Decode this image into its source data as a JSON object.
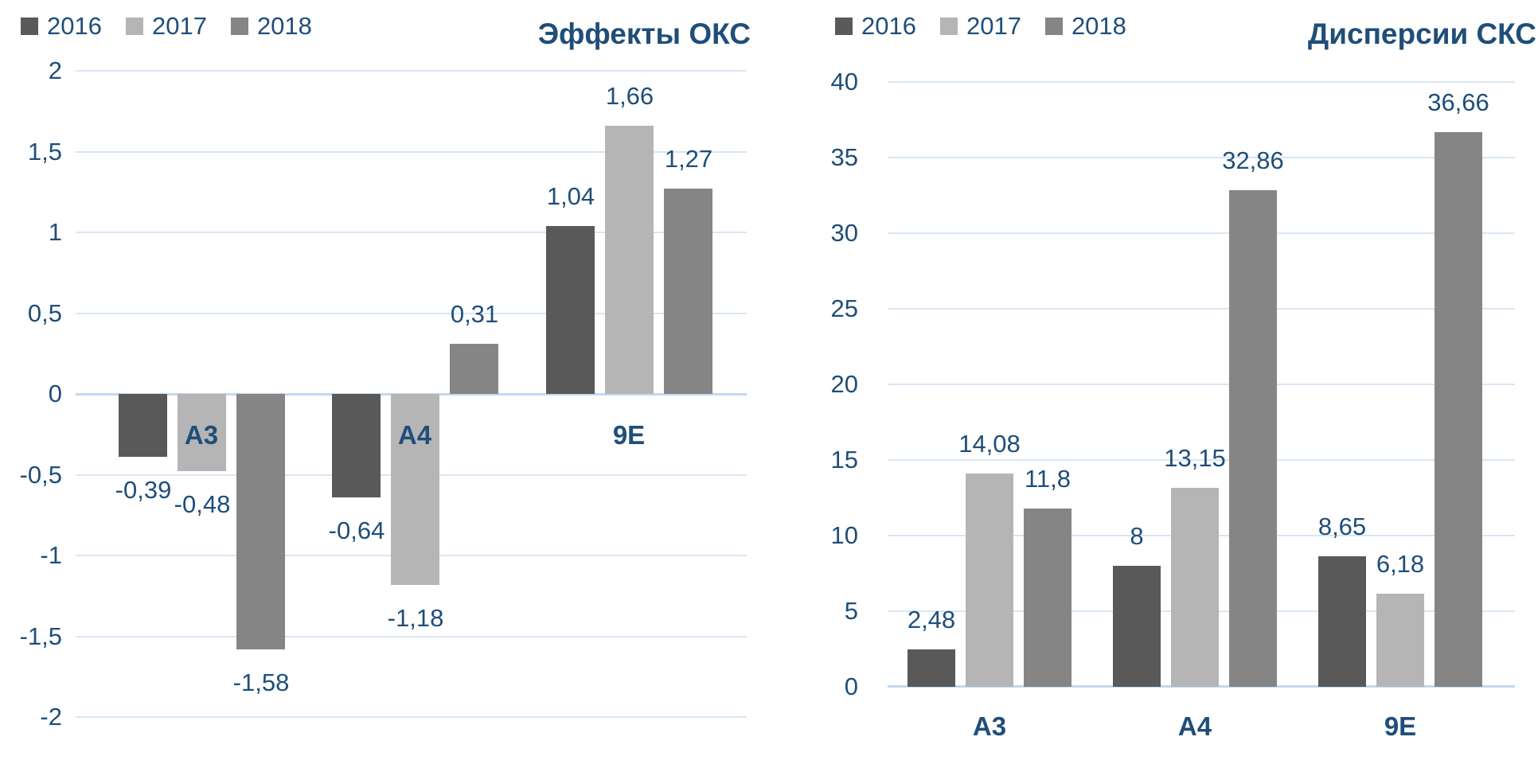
{
  "palette": {
    "text_color": "#1F4E79",
    "gridline_color": "#D9E6F5",
    "axis_baseline_color": "#C3D9F0",
    "background": "#FFFFFF"
  },
  "chart_data": [
    {
      "type": "bar",
      "title": "Эффекты ОКС",
      "legend_position": "top-left",
      "grid": true,
      "categories": [
        "A3",
        "A4",
        "9E"
      ],
      "series": [
        {
          "name": "2016",
          "color": "#595959",
          "values": [
            -0.39,
            -0.64,
            1.04
          ],
          "labels": [
            "-0,39",
            "-0,64",
            "1,04"
          ]
        },
        {
          "name": "2017",
          "color": "#B5B5B5",
          "values": [
            -0.48,
            -1.18,
            1.66
          ],
          "labels": [
            "-0,48",
            "-1,18",
            "1,66"
          ]
        },
        {
          "name": "2018",
          "color": "#858585",
          "values": [
            -1.58,
            0.31,
            1.27
          ],
          "labels": [
            "-1,58",
            "0,31",
            "1,27"
          ]
        }
      ],
      "ylim": [
        -2,
        2
      ],
      "ytick_step": 0.5,
      "yticks_top_to_bottom": [
        "2",
        "1,5",
        "1",
        "0,5",
        "0",
        "-0,5",
        "-1",
        "-1,5",
        "-2"
      ]
    },
    {
      "type": "bar",
      "title": "Дисперсии СКС",
      "legend_position": "top-left",
      "grid": true,
      "categories": [
        "A3",
        "A4",
        "9E"
      ],
      "series": [
        {
          "name": "2016",
          "color": "#595959",
          "values": [
            2.48,
            8,
            8.65
          ],
          "labels": [
            "2,48",
            "8",
            "8,65"
          ]
        },
        {
          "name": "2017",
          "color": "#B5B5B5",
          "values": [
            14.08,
            13.15,
            6.18
          ],
          "labels": [
            "14,08",
            "13,15",
            "6,18"
          ]
        },
        {
          "name": "2018",
          "color": "#858585",
          "values": [
            11.8,
            32.86,
            36.66
          ],
          "labels": [
            "11,8",
            "32,86",
            "36,66"
          ]
        }
      ],
      "ylim": [
        0,
        40
      ],
      "ytick_step": 5,
      "yticks_top_to_bottom": [
        "40",
        "35",
        "30",
        "25",
        "20",
        "15",
        "10",
        "5",
        "0"
      ]
    }
  ]
}
